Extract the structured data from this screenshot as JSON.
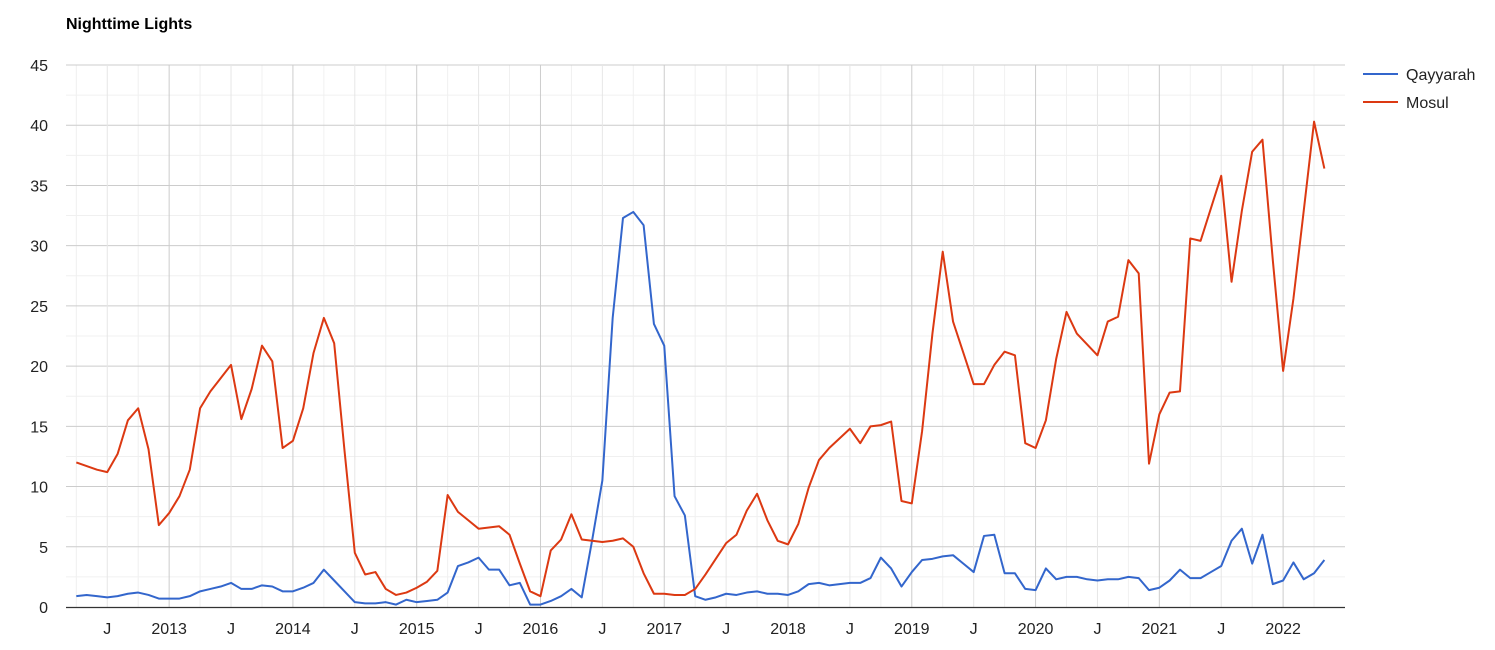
{
  "chart_data": {
    "type": "line",
    "title": "Nighttime Lights",
    "xlabel": "",
    "ylabel": "",
    "ylim": [
      0,
      45
    ],
    "y_ticks": [
      0,
      5,
      10,
      15,
      20,
      25,
      30,
      35,
      40,
      45
    ],
    "x_range": [
      "2012-03",
      "2022-07"
    ],
    "x_ticks": [
      {
        "label": "J",
        "date": "2012-07"
      },
      {
        "label": "2013",
        "date": "2013-01"
      },
      {
        "label": "J",
        "date": "2013-07"
      },
      {
        "label": "2014",
        "date": "2014-01"
      },
      {
        "label": "J",
        "date": "2014-07"
      },
      {
        "label": "2015",
        "date": "2015-01"
      },
      {
        "label": "J",
        "date": "2015-07"
      },
      {
        "label": "2016",
        "date": "2016-01"
      },
      {
        "label": "J",
        "date": "2016-07"
      },
      {
        "label": "2017",
        "date": "2017-01"
      },
      {
        "label": "J",
        "date": "2017-07"
      },
      {
        "label": "2018",
        "date": "2018-01"
      },
      {
        "label": "J",
        "date": "2018-07"
      },
      {
        "label": "2019",
        "date": "2019-01"
      },
      {
        "label": "J",
        "date": "2019-07"
      },
      {
        "label": "2020",
        "date": "2020-01"
      },
      {
        "label": "J",
        "date": "2020-07"
      },
      {
        "label": "2021",
        "date": "2021-01"
      },
      {
        "label": "J",
        "date": "2021-07"
      },
      {
        "label": "2022",
        "date": "2022-01"
      }
    ],
    "grid": true,
    "legend_position": "right",
    "x_start": "2012-04",
    "series": [
      {
        "name": "Qayyarah",
        "color": "#3366cc",
        "values": [
          0.9,
          1.0,
          0.9,
          0.8,
          0.9,
          1.1,
          1.2,
          1.0,
          0.7,
          0.7,
          0.7,
          0.9,
          1.3,
          1.5,
          1.7,
          2.0,
          1.5,
          1.5,
          1.8,
          1.7,
          1.3,
          1.3,
          1.6,
          2.0,
          3.1,
          2.2,
          1.3,
          0.4,
          0.3,
          0.3,
          0.4,
          0.2,
          0.6,
          0.4,
          0.5,
          0.6,
          1.2,
          3.4,
          3.7,
          4.1,
          3.1,
          3.1,
          1.8,
          2.0,
          0.2,
          0.2,
          0.5,
          0.9,
          1.5,
          0.8,
          5.5,
          10.5,
          24.0,
          32.3,
          32.8,
          31.7,
          23.5,
          21.7,
          9.2,
          7.6,
          0.9,
          0.6,
          0.8,
          1.1,
          1.0,
          1.2,
          1.3,
          1.1,
          1.1,
          1.0,
          1.3,
          1.9,
          2.0,
          1.8,
          1.9,
          2.0,
          2.0,
          2.4,
          4.1,
          3.2,
          1.7,
          2.9,
          3.9,
          4.0,
          4.2,
          4.3,
          3.6,
          2.9,
          5.9,
          6.0,
          2.8,
          2.8,
          1.5,
          1.4,
          3.2,
          2.3,
          2.5,
          2.5,
          2.3,
          2.2,
          2.3,
          2.3,
          2.5,
          2.4,
          1.4,
          1.6,
          2.2,
          3.1,
          2.4,
          2.4,
          2.9,
          3.4,
          5.5,
          6.5,
          3.6,
          6.0,
          1.9,
          2.2,
          3.7,
          2.3,
          2.8,
          3.9
        ]
      },
      {
        "name": "Mosul",
        "color": "#dc3912",
        "values": [
          12.0,
          11.7,
          11.4,
          11.2,
          12.7,
          15.5,
          16.5,
          13.1,
          6.8,
          7.8,
          9.2,
          11.4,
          16.5,
          17.9,
          19.0,
          20.1,
          15.6,
          18.1,
          21.7,
          20.4,
          13.2,
          13.8,
          16.5,
          21.1,
          24.0,
          21.9,
          13.0,
          4.5,
          2.7,
          2.9,
          1.5,
          1.0,
          1.2,
          1.6,
          2.1,
          3.0,
          9.3,
          7.9,
          7.2,
          6.5,
          6.6,
          6.7,
          6.0,
          3.6,
          1.3,
          0.9,
          4.7,
          5.6,
          7.7,
          5.6,
          5.5,
          5.4,
          5.5,
          5.7,
          5.0,
          2.8,
          1.1,
          1.1,
          1.0,
          1.0,
          1.5,
          2.7,
          4.0,
          5.3,
          6.0,
          8.0,
          9.4,
          7.2,
          5.5,
          5.2,
          6.9,
          9.9,
          12.2,
          13.2,
          14.0,
          14.8,
          13.6,
          15.0,
          15.1,
          15.4,
          8.8,
          8.6,
          14.6,
          22.7,
          29.5,
          23.7,
          21.1,
          18.5,
          18.5,
          20.1,
          21.2,
          20.9,
          13.6,
          13.2,
          15.5,
          20.6,
          24.5,
          22.7,
          21.8,
          20.9,
          23.7,
          24.1,
          28.8,
          27.7,
          11.9,
          16.0,
          17.8,
          17.9,
          30.6,
          30.4,
          33.1,
          35.8,
          27.0,
          32.9,
          37.8,
          38.8,
          28.8,
          19.6,
          25.6,
          32.9,
          40.3,
          36.4
        ]
      }
    ]
  }
}
